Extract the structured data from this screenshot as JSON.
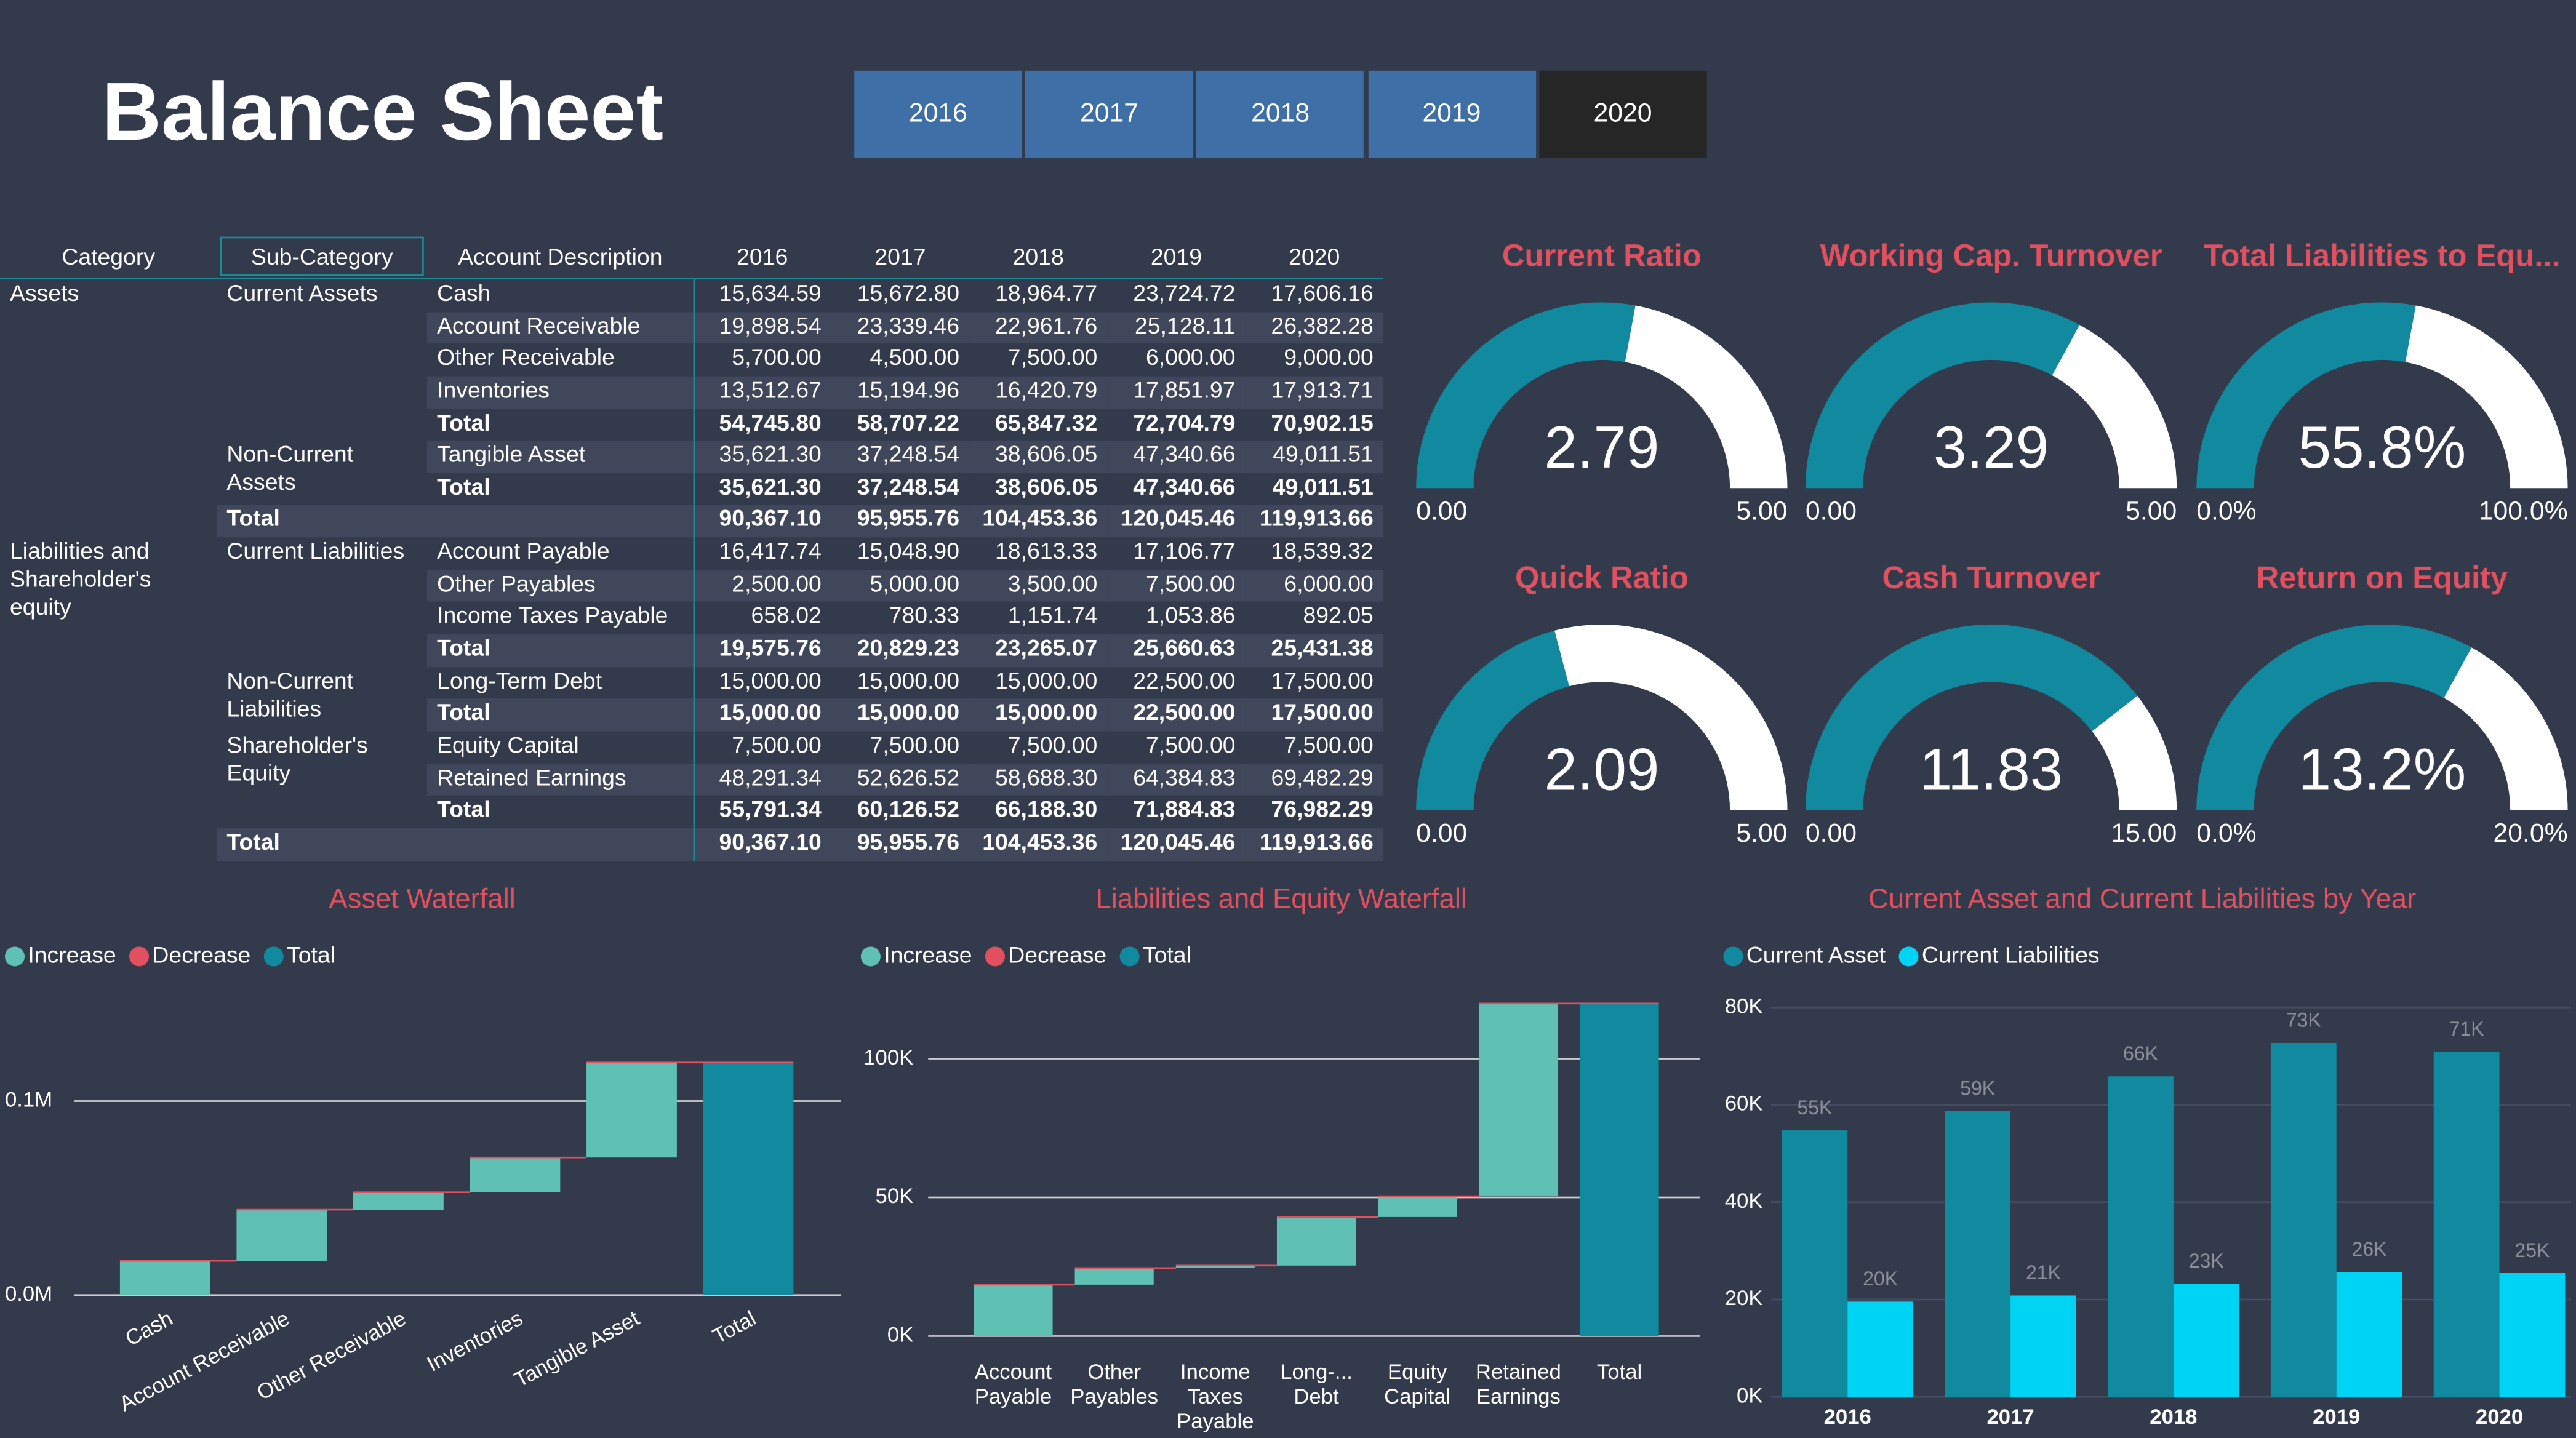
{
  "header": {
    "title": "Balance Sheet"
  },
  "year_buttons": [
    {
      "label": "2016",
      "selected": false
    },
    {
      "label": "2017",
      "selected": false
    },
    {
      "label": "2018",
      "selected": false
    },
    {
      "label": "2019",
      "selected": false
    },
    {
      "label": "2020",
      "selected": true
    }
  ],
  "table": {
    "columns": [
      "Category",
      "Sub-Category",
      "Account Description",
      "2016",
      "2017",
      "2018",
      "2019",
      "2020"
    ],
    "rows": [
      {
        "category": "Assets",
        "subcategory": "Current Assets",
        "account": "Cash",
        "values": [
          "15,634.59",
          "15,672.80",
          "18,964.77",
          "23,724.72",
          "17,606.16"
        ]
      },
      {
        "account": "Account Receivable",
        "values": [
          "19,898.54",
          "23,339.46",
          "22,961.76",
          "25,128.11",
          "26,382.28"
        ]
      },
      {
        "account": "Other Receivable",
        "values": [
          "5,700.00",
          "4,500.00",
          "7,500.00",
          "6,000.00",
          "9,000.00"
        ]
      },
      {
        "account": "Inventories",
        "values": [
          "13,512.67",
          "15,194.96",
          "16,420.79",
          "17,851.97",
          "17,913.71"
        ]
      },
      {
        "account": "Total",
        "bold": true,
        "values": [
          "54,745.80",
          "58,707.22",
          "65,847.32",
          "72,704.79",
          "70,902.15"
        ]
      },
      {
        "subcategory": "Non-Current Assets",
        "account": "Tangible Asset",
        "values": [
          "35,621.30",
          "37,248.54",
          "38,606.05",
          "47,340.66",
          "49,011.51"
        ]
      },
      {
        "account": "Total",
        "bold": true,
        "values": [
          "35,621.30",
          "37,248.54",
          "38,606.05",
          "47,340.66",
          "49,011.51"
        ]
      },
      {
        "subcategory": "Total",
        "bold": true,
        "values": [
          "90,367.10",
          "95,955.76",
          "104,453.36",
          "120,045.46",
          "119,913.66"
        ]
      },
      {
        "category": "Liabilities and Shareholder's equity",
        "subcategory": "Current Liabilities",
        "account": "Account Payable",
        "values": [
          "16,417.74",
          "15,048.90",
          "18,613.33",
          "17,106.77",
          "18,539.32"
        ]
      },
      {
        "account": "Other Payables",
        "values": [
          "2,500.00",
          "5,000.00",
          "3,500.00",
          "7,500.00",
          "6,000.00"
        ]
      },
      {
        "account": "Income Taxes Payable",
        "values": [
          "658.02",
          "780.33",
          "1,151.74",
          "1,053.86",
          "892.05"
        ]
      },
      {
        "account": "Total",
        "bold": true,
        "values": [
          "19,575.76",
          "20,829.23",
          "23,265.07",
          "25,660.63",
          "25,431.38"
        ]
      },
      {
        "subcategory": "Non-Current Liabilities",
        "account": "Long-Term Debt",
        "values": [
          "15,000.00",
          "15,000.00",
          "15,000.00",
          "22,500.00",
          "17,500.00"
        ]
      },
      {
        "account": "Total",
        "bold": true,
        "values": [
          "15,000.00",
          "15,000.00",
          "15,000.00",
          "22,500.00",
          "17,500.00"
        ]
      },
      {
        "subcategory": "Shareholder's Equity",
        "account": "Equity Capital",
        "values": [
          "7,500.00",
          "7,500.00",
          "7,500.00",
          "7,500.00",
          "7,500.00"
        ]
      },
      {
        "account": "Retained Earnings",
        "values": [
          "48,291.34",
          "52,626.52",
          "58,688.30",
          "64,384.83",
          "69,482.29"
        ]
      },
      {
        "account": "Total",
        "bold": true,
        "values": [
          "55,791.34",
          "60,126.52",
          "66,188.30",
          "71,884.83",
          "76,982.29"
        ]
      },
      {
        "subcategory": "Total",
        "bold": true,
        "values": [
          "90,367.10",
          "95,955.76",
          "104,453.36",
          "120,045.46",
          "119,913.66"
        ]
      }
    ]
  },
  "gauge_colors": {
    "value": "#118a9f",
    "rest": "#ffffff",
    "title": "#e0505f"
  },
  "gauges": [
    {
      "title": "Current Ratio",
      "value": 2.79,
      "min": {
        "value": 0,
        "label": "0.00"
      },
      "max": {
        "value": 5,
        "label": "5.00"
      }
    },
    {
      "title": "Working Cap. Turnover",
      "value": 3.29,
      "min": {
        "value": 0,
        "label": "0.00"
      },
      "max": {
        "value": 5,
        "label": "5.00"
      }
    },
    {
      "title": "Total Liabilities to Equ...",
      "value": 55.8,
      "value_label": "55.8%",
      "min": {
        "value": 0,
        "label": "0.0%"
      },
      "max": {
        "value": 100,
        "label": "100.0%"
      }
    },
    {
      "title": "Quick Ratio",
      "value": 2.09,
      "min": {
        "value": 0,
        "label": "0.00"
      },
      "max": {
        "value": 5,
        "label": "5.00"
      }
    },
    {
      "title": "Cash Turnover",
      "value": 11.83,
      "min": {
        "value": 0,
        "label": "0.00"
      },
      "max": {
        "value": 15,
        "label": "15.00"
      }
    },
    {
      "title": "Return on Equity",
      "value": 13.2,
      "value_label": "13.2%",
      "min": {
        "value": 0,
        "label": "0.0%"
      },
      "max": {
        "value": 20,
        "label": "20.0%"
      }
    }
  ],
  "chart_data": [
    {
      "type": "waterfall",
      "title": "Asset Waterfall",
      "categories": [
        "Cash",
        "Account Receivable",
        "Other Receivable",
        "Inventories",
        "Tangible Asset",
        "Total"
      ],
      "series": [
        {
          "name": "Increase",
          "color": "#5fc1b4",
          "values": [
            17606.16,
            26382.28,
            9000,
            17913.71,
            49011.51,
            null
          ]
        },
        {
          "name": "Decrease",
          "color": "#e0505f",
          "values": [
            null,
            null,
            null,
            null,
            null,
            null
          ]
        },
        {
          "name": "Total",
          "color": "#118a9f",
          "values": [
            null,
            null,
            null,
            null,
            null,
            119913.66
          ]
        }
      ],
      "ylim": [
        0,
        150000
      ],
      "yticks": [
        {
          "value": 0,
          "label": "0.0M"
        },
        {
          "value": 100000,
          "label": "0.1M"
        }
      ],
      "grid": true
    },
    {
      "type": "waterfall",
      "title": "Liabilities and Equity Waterfall",
      "categories": [
        "Account Payable",
        "Other Payables",
        "Income Taxes Payable",
        "Long-... Debt",
        "Equity Capital",
        "Retained Earnings",
        "Total"
      ],
      "series": [
        {
          "name": "Increase",
          "color": "#5fc1b4",
          "values": [
            18539.32,
            6000,
            892.05,
            17500,
            7500,
            69482.29,
            null
          ]
        },
        {
          "name": "Decrease",
          "color": "#e0505f",
          "values": [
            null,
            null,
            null,
            null,
            null,
            null,
            null
          ]
        },
        {
          "name": "Total",
          "color": "#118a9f",
          "values": [
            null,
            null,
            null,
            null,
            null,
            null,
            119913.66
          ]
        }
      ],
      "ylim": [
        0,
        125000
      ],
      "yticks": [
        {
          "value": 0,
          "label": "0K"
        },
        {
          "value": 50000,
          "label": "50K"
        },
        {
          "value": 100000,
          "label": "100K"
        }
      ],
      "grid": true
    },
    {
      "type": "bar",
      "title": "Current Asset and Current Liabilities by Year",
      "categories": [
        "2016",
        "2017",
        "2018",
        "2019",
        "2020"
      ],
      "series": [
        {
          "name": "Current Asset",
          "color": "#118a9f",
          "values": [
            54745.8,
            58707.22,
            65847.32,
            72704.79,
            70902.15
          ],
          "value_labels": [
            "55K",
            "59K",
            "66K",
            "73K",
            "71K"
          ]
        },
        {
          "name": "Current Liabilities",
          "color": "#00d4f5",
          "values": [
            19575.76,
            20829.23,
            23265.07,
            25660.63,
            25431.38
          ],
          "value_labels": [
            "20K",
            "21K",
            "23K",
            "26K",
            "25K"
          ]
        }
      ],
      "ylim": [
        0,
        80000
      ],
      "yticks": [
        {
          "value": 0,
          "label": "0K"
        },
        {
          "value": 20000,
          "label": "20K"
        },
        {
          "value": 40000,
          "label": "40K"
        },
        {
          "value": 60000,
          "label": "60K"
        },
        {
          "value": 80000,
          "label": "80K"
        }
      ],
      "grid": true
    }
  ]
}
